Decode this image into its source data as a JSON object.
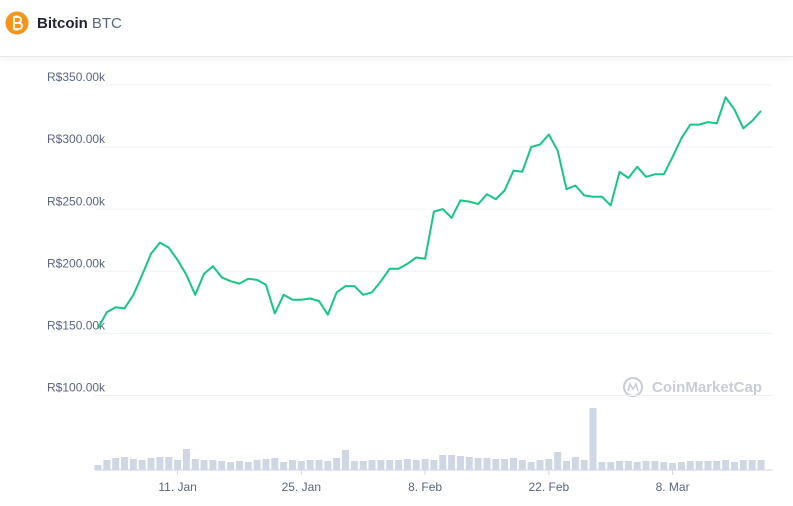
{
  "header": {
    "name": "Bitcoin",
    "symbol": "BTC"
  },
  "chart_data": {
    "type": "line",
    "categories": [
      null,
      null,
      null,
      null,
      null,
      null,
      null,
      null,
      null,
      "11. Jan",
      null,
      null,
      null,
      null,
      null,
      null,
      null,
      null,
      null,
      null,
      null,
      null,
      null,
      "25. Jan",
      null,
      null,
      null,
      null,
      null,
      null,
      null,
      null,
      null,
      null,
      null,
      null,
      null,
      "8. Feb",
      null,
      null,
      null,
      null,
      null,
      null,
      null,
      null,
      null,
      null,
      null,
      null,
      null,
      "22. Feb",
      null,
      null,
      null,
      null,
      null,
      null,
      null,
      null,
      null,
      null,
      null,
      null,
      null,
      "8. Mar",
      null,
      null,
      null,
      null,
      null,
      null,
      null,
      null,
      null,
      null
    ],
    "values": [
      154000,
      167000,
      171000,
      170000,
      181000,
      197000,
      214000,
      223000,
      219000,
      209000,
      197000,
      181000,
      198000,
      204000,
      195000,
      192000,
      190000,
      194000,
      193000,
      189000,
      166000,
      181000,
      177000,
      177000,
      178000,
      176000,
      165000,
      183000,
      188000,
      188000,
      181000,
      183000,
      192000,
      202000,
      202000,
      206000,
      211000,
      210000,
      248000,
      250000,
      243000,
      257000,
      256000,
      254000,
      262000,
      258000,
      265000,
      281000,
      280000,
      300000,
      302000,
      310000,
      297000,
      266000,
      269000,
      261000,
      260000,
      260000,
      253000,
      280000,
      275000,
      284000,
      276000,
      278000,
      278000,
      292000,
      307000,
      318000,
      318000,
      320000,
      319000,
      340000,
      330000,
      315000,
      321000,
      329000
    ],
    "volume": [
      5,
      10,
      12,
      13,
      11,
      10,
      12,
      13,
      13,
      10,
      21,
      11,
      10,
      10,
      9,
      8,
      9,
      8,
      10,
      11,
      12,
      8,
      10,
      9,
      10,
      10,
      9,
      12,
      20,
      9,
      9,
      10,
      10,
      10,
      10,
      11,
      10,
      11,
      10,
      15,
      15,
      14,
      13,
      12,
      12,
      11,
      11,
      12,
      10,
      8,
      10,
      11,
      18,
      9,
      13,
      10,
      62,
      8,
      8,
      9,
      9,
      8,
      9,
      9,
      8,
      7,
      8,
      9,
      9,
      9,
      9,
      10,
      8,
      10,
      10,
      10
    ],
    "color": "#16c784",
    "volume_color": "#cfd6e4",
    "ylim": [
      40000,
      370000
    ],
    "yticks": [
      {
        "value": 100000,
        "label": "R$100.00k"
      },
      {
        "value": 150000,
        "label": "R$150.00k"
      },
      {
        "value": 200000,
        "label": "R$200.00k"
      },
      {
        "value": 250000,
        "label": "R$250.00k"
      },
      {
        "value": 300000,
        "label": "R$300.00k"
      },
      {
        "value": 350000,
        "label": "R$350.00k"
      }
    ],
    "grid": true,
    "watermark": "CoinMarketCap"
  }
}
